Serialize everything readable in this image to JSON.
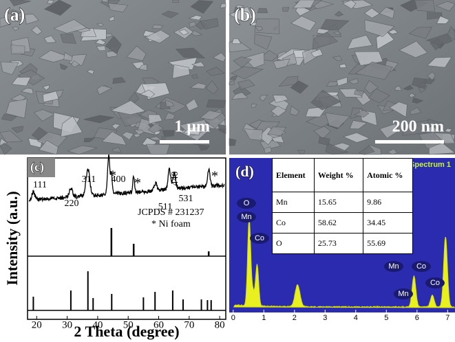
{
  "panel_a": {
    "label": "(a)",
    "scale_bar": "1 μm"
  },
  "panel_b": {
    "label": "(b)",
    "scale_bar": "200 nm"
  },
  "panel_c": {
    "label": "(c)",
    "y_label": "Intensity (a.u.)",
    "x_label": "2 Theta (degree)",
    "xlim": [
      17,
      82
    ],
    "xticks": [
      20,
      30,
      40,
      50,
      60,
      70,
      80
    ],
    "peak_labels": [
      "111",
      "220",
      "311",
      "400",
      "*",
      "*",
      "511",
      "440",
      "531",
      "*"
    ],
    "reference": "JCPDS # 231237",
    "substrate": "* Ni foam"
  },
  "panel_d": {
    "label": "(d)",
    "spectrum_title": "Spectrum 1",
    "xlim": [
      -0.13,
      7.24
    ],
    "xticks": [
      0,
      1,
      2,
      3,
      4,
      5,
      6,
      7
    ],
    "peak_labels": [
      "O",
      "Mn",
      "Co",
      "Mn",
      "Mn",
      "Co",
      "Co"
    ],
    "table": {
      "header": [
        "Element",
        "Weight %",
        "Atomic %"
      ],
      "rows": [
        [
          "Mn",
          "15.65",
          "9.86"
        ],
        [
          "Co",
          "58.62",
          "34.45"
        ],
        [
          "O",
          "25.73",
          "55.69"
        ]
      ]
    }
  }
}
